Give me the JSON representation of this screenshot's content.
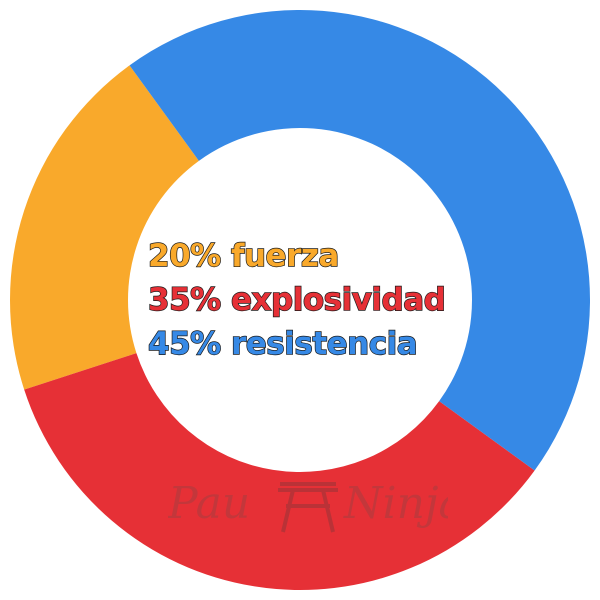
{
  "chart_data": {
    "type": "pie",
    "subtype": "donut",
    "categories": [
      "fuerza",
      "explosividad",
      "resistencia"
    ],
    "values": [
      20,
      35,
      45
    ],
    "colors": [
      "#f9a92b",
      "#e63036",
      "#3689e6"
    ],
    "labels": [
      "20% fuerza",
      "35% explosividad",
      "45% resistencia"
    ],
    "start_angle_deg": -36,
    "direction": "counterclockwise"
  },
  "watermark": {
    "left_text": "Pau",
    "right_text": "Ninja",
    "color": "#8a6a6a",
    "icon": "torii-gate-icon"
  }
}
